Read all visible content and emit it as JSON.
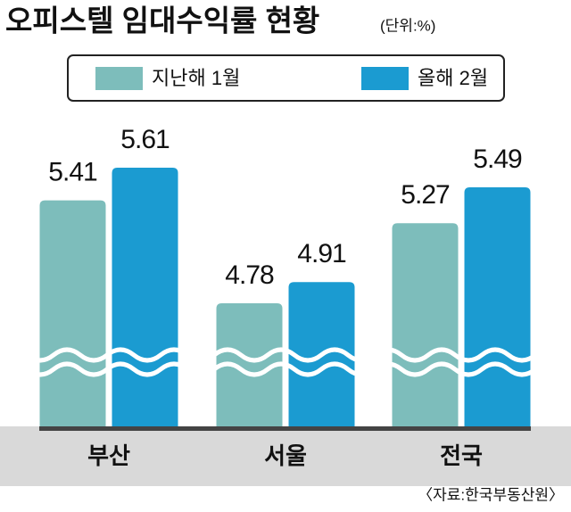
{
  "chart_data": {
    "type": "bar",
    "title": "오피스텔 임대수익률 현황",
    "unit_note": "(단위:%)",
    "source": "〈자료:한국부동산원〉",
    "categories": [
      "부산",
      "서울",
      "전국"
    ],
    "series": [
      {
        "name": "지난해 1월",
        "color": "#7dbdbb",
        "values": [
          5.41,
          4.78,
          5.27
        ]
      },
      {
        "name": "올해 2월",
        "color": "#1b9bd1",
        "values": [
          5.61,
          4.91,
          5.49
        ]
      }
    ],
    "legend": "top"
  }
}
